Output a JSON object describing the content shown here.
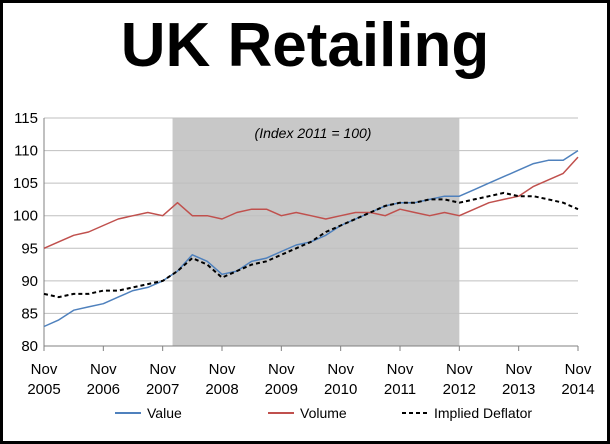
{
  "title": "UK Retailing",
  "chart_data": {
    "type": "line",
    "title": "UK Retailing",
    "annotation": "(Index 2011 = 100)",
    "xlabel": "",
    "ylabel": "",
    "ylim": [
      80,
      115
    ],
    "y_ticks": [
      "80",
      "85",
      "90",
      "95",
      "100",
      "105",
      "110",
      "115"
    ],
    "x_tick_labels": [
      {
        "month": "Nov",
        "year": "2005"
      },
      {
        "month": "Nov",
        "year": "2006"
      },
      {
        "month": "Nov",
        "year": "2007"
      },
      {
        "month": "Nov",
        "year": "2008"
      },
      {
        "month": "Nov",
        "year": "2009"
      },
      {
        "month": "Nov",
        "year": "2010"
      },
      {
        "month": "Nov",
        "year": "2011"
      },
      {
        "month": "Nov",
        "year": "2012"
      },
      {
        "month": "Nov",
        "year": "2013"
      },
      {
        "month": "Nov",
        "year": "2014"
      }
    ],
    "shaded_period": {
      "start": "Jan 2008",
      "end": "Nov 2012",
      "color": "#c8c8c8"
    },
    "legend_position": "bottom",
    "grid": "horizontal",
    "series": [
      {
        "name": "Value",
        "color": "#4f81bd",
        "style": "solid",
        "x": [
          "2005-11",
          "2006-02",
          "2006-05",
          "2006-08",
          "2006-11",
          "2007-02",
          "2007-05",
          "2007-08",
          "2007-11",
          "2008-02",
          "2008-05",
          "2008-08",
          "2008-11",
          "2009-02",
          "2009-05",
          "2009-08",
          "2009-11",
          "2010-02",
          "2010-05",
          "2010-08",
          "2010-11",
          "2011-02",
          "2011-05",
          "2011-08",
          "2011-11",
          "2012-02",
          "2012-05",
          "2012-08",
          "2012-11",
          "2013-02",
          "2013-05",
          "2013-08",
          "2013-11",
          "2014-02",
          "2014-05",
          "2014-08",
          "2014-11"
        ],
        "values": [
          83.0,
          84.0,
          85.5,
          86.0,
          86.5,
          87.5,
          88.5,
          89.0,
          90.0,
          91.5,
          94.0,
          93.0,
          91.0,
          91.5,
          93.0,
          93.5,
          94.5,
          95.5,
          96.0,
          97.0,
          98.5,
          99.5,
          100.5,
          101.5,
          102.0,
          102.0,
          102.5,
          103.0,
          103.0,
          104.0,
          105.0,
          106.0,
          107.0,
          108.0,
          108.5,
          108.5,
          110.0
        ]
      },
      {
        "name": "Volume",
        "color": "#c0504d",
        "style": "solid",
        "x": [
          "2005-11",
          "2006-02",
          "2006-05",
          "2006-08",
          "2006-11",
          "2007-02",
          "2007-05",
          "2007-08",
          "2007-11",
          "2008-02",
          "2008-05",
          "2008-08",
          "2008-11",
          "2009-02",
          "2009-05",
          "2009-08",
          "2009-11",
          "2010-02",
          "2010-05",
          "2010-08",
          "2010-11",
          "2011-02",
          "2011-05",
          "2011-08",
          "2011-11",
          "2012-02",
          "2012-05",
          "2012-08",
          "2012-11",
          "2013-02",
          "2013-05",
          "2013-08",
          "2013-11",
          "2014-02",
          "2014-05",
          "2014-08",
          "2014-11"
        ],
        "values": [
          95.0,
          96.0,
          97.0,
          97.5,
          98.5,
          99.5,
          100.0,
          100.5,
          100.0,
          102.0,
          100.0,
          100.0,
          99.5,
          100.5,
          101.0,
          101.0,
          100.0,
          100.5,
          100.0,
          99.5,
          100.0,
          100.5,
          100.5,
          100.0,
          101.0,
          100.5,
          100.0,
          100.5,
          100.0,
          101.0,
          102.0,
          102.5,
          103.0,
          104.5,
          105.5,
          106.5,
          109.0
        ]
      },
      {
        "name": "Implied Deflator",
        "color": "#000000",
        "style": "dashed",
        "x": [
          "2005-11",
          "2006-02",
          "2006-05",
          "2006-08",
          "2006-11",
          "2007-02",
          "2007-05",
          "2007-08",
          "2007-11",
          "2008-02",
          "2008-05",
          "2008-08",
          "2008-11",
          "2009-02",
          "2009-05",
          "2009-08",
          "2009-11",
          "2010-02",
          "2010-05",
          "2010-08",
          "2010-11",
          "2011-02",
          "2011-05",
          "2011-08",
          "2011-11",
          "2012-02",
          "2012-05",
          "2012-08",
          "2012-11",
          "2013-02",
          "2013-05",
          "2013-08",
          "2013-11",
          "2014-02",
          "2014-05",
          "2014-08",
          "2014-11"
        ],
        "values": [
          88.0,
          87.5,
          88.0,
          88.0,
          88.5,
          88.5,
          89.0,
          89.5,
          90.0,
          91.5,
          93.5,
          92.5,
          90.5,
          91.5,
          92.5,
          93.0,
          94.0,
          95.0,
          96.0,
          97.5,
          98.5,
          99.5,
          100.5,
          101.5,
          102.0,
          102.0,
          102.5,
          102.5,
          102.0,
          102.5,
          103.0,
          103.5,
          103.0,
          103.0,
          102.5,
          102.0,
          101.0
        ]
      }
    ]
  }
}
